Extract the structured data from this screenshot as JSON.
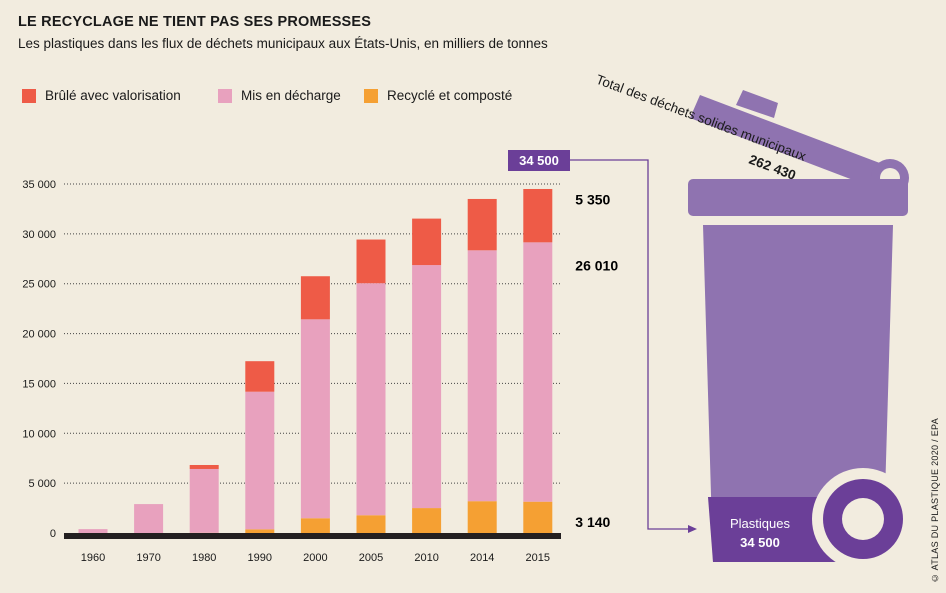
{
  "title": "LE RECYCLAGE NE TIENT PAS SES PROMESSES",
  "subtitle": "Les plastiques dans les flux de déchets municipaux aux États-Unis, en milliers de tonnes",
  "legend": [
    {
      "label": "Brûlé avec valorisation",
      "color": "#ee5b47"
    },
    {
      "label": "Mis en décharge",
      "color": "#e8a1be"
    },
    {
      "label": "Recyclé et composté",
      "color": "#f5a033"
    }
  ],
  "chart_data": {
    "type": "bar",
    "stacked": true,
    "title": "LE RECYCLAGE NE TIENT PAS SES PROMESSES",
    "categories": [
      "1960",
      "1970",
      "1980",
      "1990",
      "2000",
      "2005",
      "2010",
      "2014",
      "2015"
    ],
    "series": [
      {
        "name": "Recyclé et composté",
        "color": "#f5a033",
        "values": [
          0,
          0,
          20,
          370,
          1480,
          1780,
          2500,
          3190,
          3140
        ]
      },
      {
        "name": "Mis en décharge",
        "color": "#e8a1be",
        "values": [
          390,
          2900,
          6400,
          13800,
          19950,
          23270,
          24370,
          25160,
          26010
        ]
      },
      {
        "name": "Brûlé avec valorisation",
        "color": "#ee5b47",
        "values": [
          0,
          0,
          400,
          3060,
          4320,
          4380,
          4660,
          5150,
          5350
        ]
      }
    ],
    "yticks": [
      "35 000",
      "30 000",
      "25 000",
      "20 000",
      "15 000",
      "10 000",
      "5 000",
      "0"
    ],
    "ylim": [
      0,
      35000
    ],
    "annotations": [
      "5 350",
      "26 010",
      "3 140"
    ]
  },
  "bin": {
    "total_label": "Total des déchets solides municipaux",
    "total_value": "262 430",
    "callout": "34 500",
    "plastic_label": "Plastiques",
    "plastic_value": "34 500",
    "color": "#8f73b0",
    "dark": "#6b3f98"
  },
  "credit": "© ATLAS DU PLASTIQUE 2020 / EPA"
}
